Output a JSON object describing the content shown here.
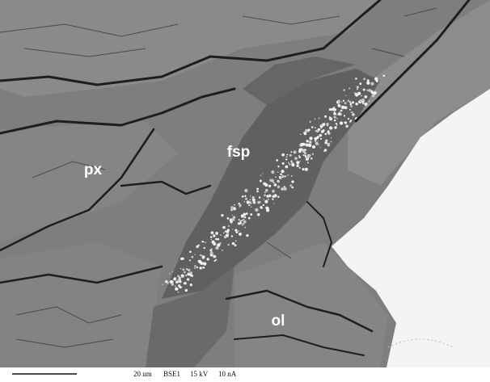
{
  "labels": {
    "px": "px",
    "fsp": "fsp",
    "ol": "ol"
  },
  "footer": {
    "scale": "20 um",
    "detector": "BSE1",
    "voltage": "15 kV",
    "current": "10 nA"
  }
}
